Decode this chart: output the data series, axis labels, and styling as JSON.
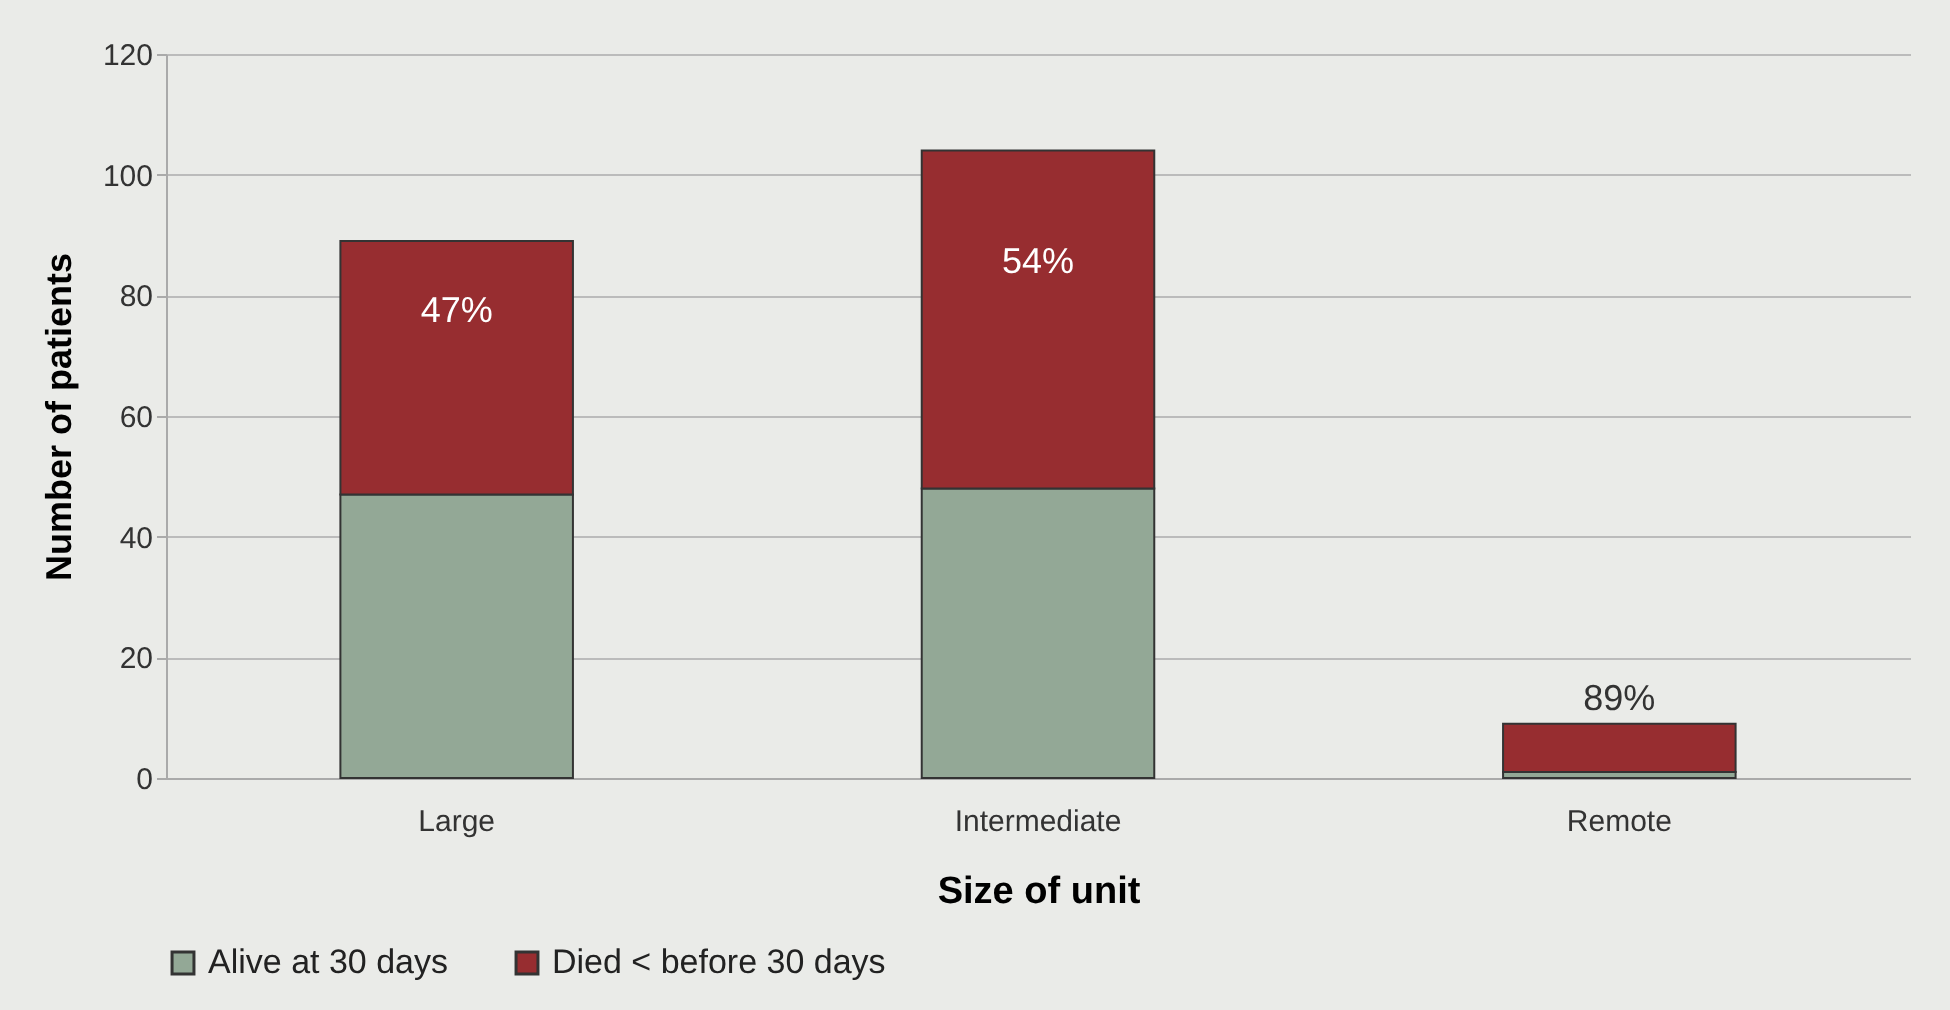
{
  "chart_data": {
    "type": "bar",
    "stacked": true,
    "xlabel": "Size of unit",
    "ylabel": "Number of patients",
    "categories": [
      "Large",
      "Intermediate",
      "Remote"
    ],
    "series": [
      {
        "name": "Alive at 30 days",
        "color": "#93a896",
        "values": [
          47,
          48,
          1
        ]
      },
      {
        "name": "Died < before 30 days",
        "color": "#972d30",
        "values": [
          42,
          56,
          8
        ]
      }
    ],
    "annotations": [
      "47%",
      "54%",
      "89%"
    ],
    "ylim": [
      0,
      120
    ],
    "yticks": [
      0,
      20,
      40,
      60,
      80,
      100,
      120
    ],
    "grid": "y",
    "legend": "bottom"
  }
}
